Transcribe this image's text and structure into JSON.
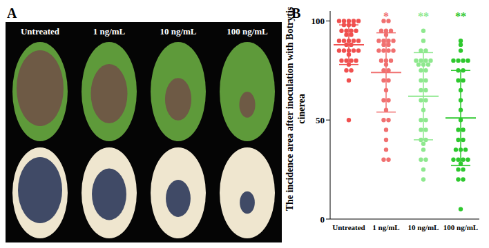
{
  "panel_a": {
    "label": "A",
    "columns": [
      "Untreated",
      "1 ng/mL",
      "10 ng/mL",
      "100 ng/mL"
    ]
  },
  "chart_data": {
    "type": "scatter",
    "panel_label": "B",
    "y_label": "The incidence area after inoculation with Botrytis cinerea",
    "categories": [
      "Untreated",
      "1 ng/mL",
      "10 ng/mL",
      "100 ng/mL"
    ],
    "colors": [
      "#f0504f",
      "#f07070",
      "#8ee88e",
      "#2ec82e"
    ],
    "values": [
      [
        100,
        100,
        100,
        100,
        100,
        98,
        98,
        98,
        95,
        95,
        95,
        95,
        93,
        93,
        90,
        90,
        90,
        90,
        90,
        88,
        88,
        85,
        85,
        85,
        85,
        85,
        83,
        80,
        80,
        80,
        80,
        78,
        75,
        75,
        70,
        50
      ],
      [
        100,
        100,
        95,
        95,
        95,
        93,
        90,
        90,
        90,
        90,
        88,
        88,
        85,
        85,
        85,
        85,
        80,
        80,
        80,
        78,
        75,
        75,
        70,
        70,
        65,
        60,
        60,
        55,
        50,
        50,
        45,
        40,
        35,
        30,
        30
      ],
      [
        95,
        90,
        85,
        85,
        80,
        80,
        80,
        80,
        78,
        78,
        78,
        75,
        75,
        70,
        70,
        65,
        65,
        60,
        60,
        55,
        50,
        50,
        45,
        45,
        40,
        40,
        38,
        35,
        30,
        30,
        25,
        20
      ],
      [
        90,
        88,
        85,
        80,
        80,
        80,
        80,
        75,
        75,
        70,
        70,
        65,
        60,
        55,
        50,
        45,
        45,
        40,
        40,
        35,
        35,
        35,
        30,
        30,
        30,
        30,
        28,
        25,
        25,
        20,
        20,
        5
      ]
    ],
    "mean": [
      88,
      74,
      62,
      51
    ],
    "sd": [
      10,
      20,
      22,
      24
    ],
    "annotations": [
      {
        "category": "1 ng/mL",
        "text": "*"
      },
      {
        "category": "10 ng/mL",
        "text": "**"
      },
      {
        "category": "100 ng/mL",
        "text": "**"
      }
    ],
    "ylim": [
      0,
      105
    ],
    "yticks": [
      0,
      50,
      100
    ]
  }
}
